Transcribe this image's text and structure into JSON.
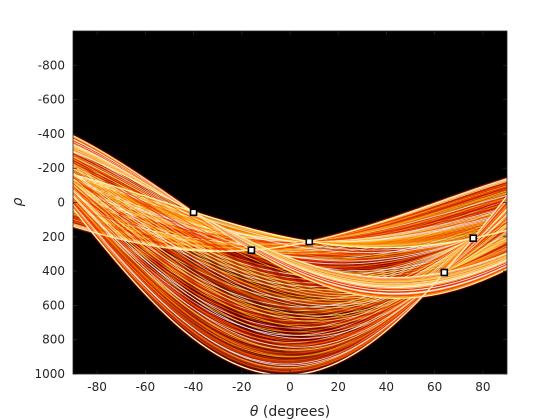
{
  "chart_data": {
    "type": "heatmap",
    "title": "",
    "xlabel_symbol": "θ",
    "xlabel_suffix": " (degrees)",
    "ylabel": "ρ",
    "xlim": [
      -90,
      90
    ],
    "ylim": [
      -1000,
      1000
    ],
    "y_reversed": true,
    "xticks": [
      -80,
      -60,
      -40,
      -20,
      0,
      20,
      40,
      60,
      80
    ],
    "yticks": [
      -800,
      -600,
      -400,
      -200,
      0,
      200,
      400,
      600,
      800,
      1000
    ],
    "colormap": "hot",
    "background_color": "#000000",
    "grid": false,
    "legend": "none",
    "peaks": [
      {
        "theta": -40,
        "rho": 57
      },
      {
        "theta": -16,
        "rho": 278
      },
      {
        "theta": 8,
        "rho": 228
      },
      {
        "theta": 64,
        "rho": 408
      },
      {
        "theta": 76,
        "rho": 208
      }
    ]
  }
}
